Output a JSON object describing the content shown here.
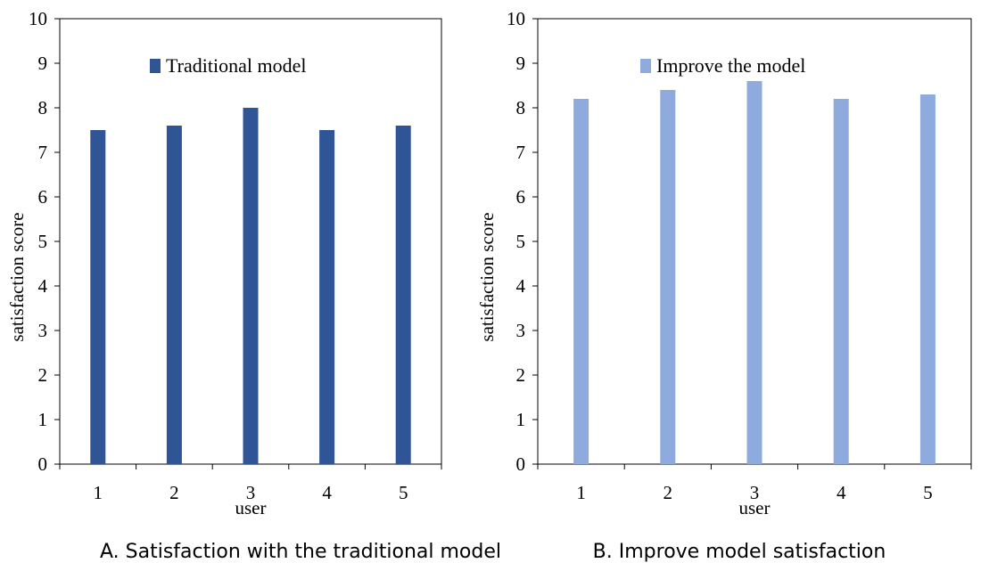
{
  "chart_data": [
    {
      "type": "bar",
      "caption": "A. Satisfaction with the traditional model",
      "categories": [
        "1",
        "2",
        "3",
        "4",
        "5"
      ],
      "series": [
        {
          "name": "Traditional model",
          "values": [
            7.5,
            7.6,
            8.0,
            7.5,
            7.6
          ],
          "color": "#2f5597"
        }
      ],
      "xlabel": "user",
      "ylabel": "satisfaction score",
      "ylim": [
        0,
        10
      ],
      "yticks": [
        "0",
        "1",
        "2",
        "3",
        "4",
        "5",
        "6",
        "7",
        "8",
        "9",
        "10"
      ],
      "grid": false,
      "legend_position": "top-center"
    },
    {
      "type": "bar",
      "caption": "B. Improve model satisfaction",
      "categories": [
        "1",
        "2",
        "3",
        "4",
        "5"
      ],
      "series": [
        {
          "name": "Improve the model",
          "values": [
            8.2,
            8.4,
            8.6,
            8.2,
            8.3
          ],
          "color": "#8faadc"
        }
      ],
      "xlabel": "user",
      "ylabel": "satisfaction score",
      "ylim": [
        0,
        10
      ],
      "yticks": [
        "0",
        "1",
        "2",
        "3",
        "4",
        "5",
        "6",
        "7",
        "8",
        "9",
        "10"
      ],
      "grid": false,
      "legend_position": "top-center"
    }
  ]
}
